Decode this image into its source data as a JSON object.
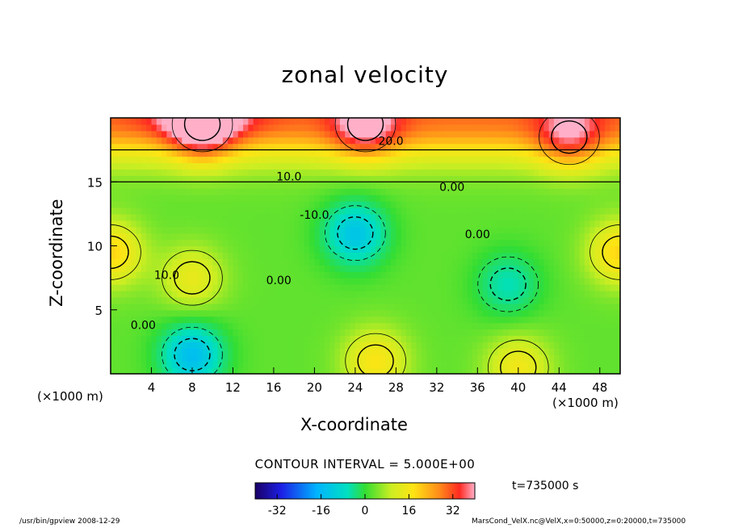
{
  "chart_data": {
    "type": "heatmap",
    "title": "zonal velocity",
    "xlabel": "X-coordinate",
    "ylabel": "Z-coordinate",
    "x_unit_left": "(×1000 m)",
    "x_unit_right": "(×1000 m)",
    "xlim": [
      0,
      50
    ],
    "ylim": [
      0,
      20
    ],
    "x_ticks": [
      4,
      8,
      12,
      16,
      20,
      24,
      28,
      32,
      36,
      40,
      44,
      48
    ],
    "y_ticks": [
      5,
      10,
      15
    ],
    "contour_labels": [
      "20.0",
      "10.0",
      "0.00",
      "-10.0",
      "0.00",
      "10.0",
      "0.00",
      "0.00"
    ],
    "contour_interval_text": "CONTOUR INTERVAL = 5.000E+00",
    "colorbar": {
      "range": [
        -40,
        40
      ],
      "ticks": [
        -32,
        -16,
        0,
        16,
        32
      ]
    },
    "time_label": "t=735000 s",
    "features": [
      {
        "x": 9,
        "z": 19.5,
        "u": 38
      },
      {
        "x": 25,
        "z": 19.5,
        "u": 28
      },
      {
        "x": 45,
        "z": 18.5,
        "u": 24
      },
      {
        "x": 24,
        "z": 11,
        "u": -20
      },
      {
        "x": 39,
        "z": 7,
        "u": -11
      },
      {
        "x": 8,
        "z": 1.5,
        "u": -22
      },
      {
        "x": 26,
        "z": 1,
        "u": 22
      },
      {
        "x": 40,
        "z": 0.5,
        "u": 20
      },
      {
        "x": 8,
        "z": 7.5,
        "u": 18
      },
      {
        "x": 50,
        "z": 9.5,
        "u": 25
      },
      {
        "x": 0,
        "z": 9.5,
        "u": 25
      }
    ]
  },
  "footer": {
    "left": "/usr/bin/gpview   2008-12-29",
    "right": "MarsCond_VelX.nc@VelX,x=0:50000,z=0:20000,t=735000"
  }
}
